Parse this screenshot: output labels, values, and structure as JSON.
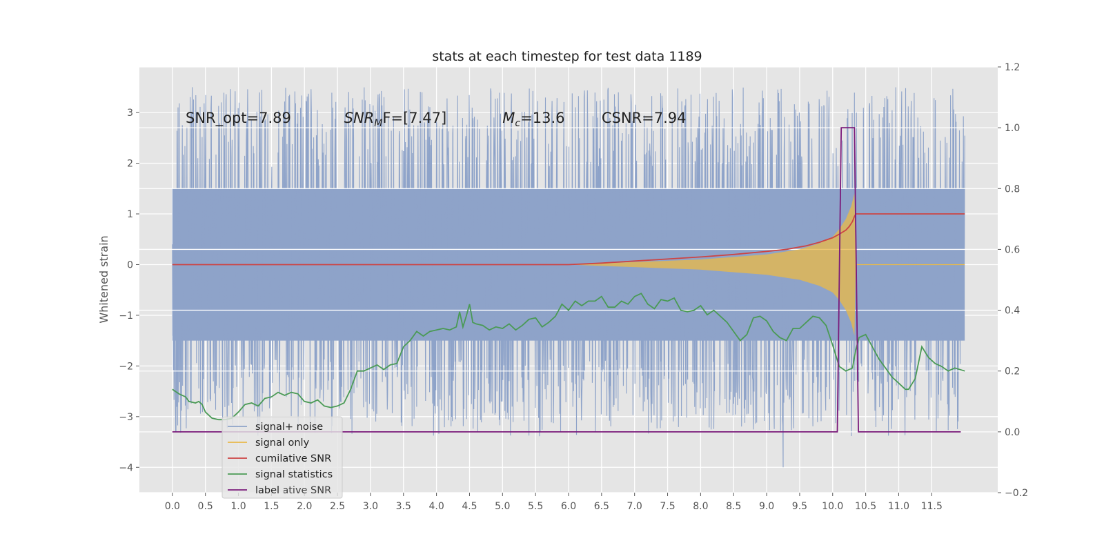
{
  "chart_data": {
    "type": "line",
    "title": "stats at each timestep for test data 1189",
    "ylabel": "Whitened strain",
    "grid": true,
    "legend_placement": "lower-left",
    "xlim": [
      -0.5,
      12.5
    ],
    "ylim": [
      -4.5,
      3.9
    ],
    "ylim_right": [
      -0.2,
      1.2
    ],
    "x_ticks": [
      "0.0",
      "0.5",
      "1.0",
      "1.5",
      "2.0",
      "2.5",
      "3.0",
      "3.5",
      "4.0",
      "4.5",
      "5.0",
      "5.5",
      "6.0",
      "6.5",
      "7.0",
      "7.5",
      "8.0",
      "8.5",
      "9.0",
      "9.5",
      "10.0",
      "10.5",
      "11.0",
      "11.5"
    ],
    "y_ticks": [
      "3",
      "2",
      "1",
      "0",
      "−1",
      "−2",
      "−3",
      "−4"
    ],
    "y_ticks_right": [
      "1.2",
      "1.0",
      "0.8",
      "0.6",
      "0.4",
      "0.2",
      "0.0",
      "−0.2"
    ],
    "annotations": [
      {
        "type": "plain",
        "text": "SNR_opt=7.89",
        "x": 0.2,
        "y": 2.8
      },
      {
        "type": "math",
        "base": "SNR",
        "sub": "M",
        "rest": "F=[7.47]",
        "x": 2.6,
        "y": 2.8
      },
      {
        "type": "math",
        "base": "M",
        "sub": "c",
        "rest": "=13.6",
        "x": 5.0,
        "y": 2.8
      },
      {
        "type": "plain",
        "text": "CSNR=7.94",
        "x": 6.5,
        "y": 2.8
      }
    ],
    "series": [
      {
        "key": "noise",
        "name": "signal+ noise",
        "color": "#8ea3c9",
        "axis": "left",
        "x_range": [
          0,
          12.0
        ],
        "core_band": [
          -1.5,
          1.5
        ],
        "spike_range": [
          -3.4,
          3.5
        ]
      },
      {
        "key": "signal",
        "name": "signal only",
        "color": "#e8b94a",
        "axis": "left",
        "envelope": [
          [
            6.0,
            0.0
          ],
          [
            7.0,
            0.05
          ],
          [
            8.0,
            0.1
          ],
          [
            9.0,
            0.2
          ],
          [
            9.5,
            0.3
          ],
          [
            9.8,
            0.42
          ],
          [
            10.0,
            0.55
          ],
          [
            10.1,
            0.7
          ],
          [
            10.2,
            0.9
          ],
          [
            10.28,
            1.15
          ],
          [
            10.33,
            1.4
          ],
          [
            10.35,
            0.0
          ],
          [
            12.0,
            0.0
          ]
        ]
      },
      {
        "key": "csnr",
        "name": "cumilative SNR",
        "color": "#cc4444",
        "axis": "left",
        "points": [
          [
            0.0,
            0.0
          ],
          [
            6.0,
            0.0
          ],
          [
            6.5,
            0.03
          ],
          [
            7.0,
            0.07
          ],
          [
            7.5,
            0.11
          ],
          [
            8.0,
            0.15
          ],
          [
            8.5,
            0.2
          ],
          [
            9.0,
            0.26
          ],
          [
            9.3,
            0.3
          ],
          [
            9.6,
            0.37
          ],
          [
            9.8,
            0.44
          ],
          [
            10.0,
            0.53
          ],
          [
            10.1,
            0.6
          ],
          [
            10.2,
            0.68
          ],
          [
            10.25,
            0.75
          ],
          [
            10.3,
            0.85
          ],
          [
            10.33,
            0.95
          ],
          [
            10.35,
            1.0
          ],
          [
            12.0,
            1.0
          ]
        ]
      },
      {
        "key": "stat",
        "name": "signal statistics",
        "color": "#4a9a55",
        "axis": "right",
        "points": [
          [
            0.0,
            0.14
          ],
          [
            0.1,
            0.125
          ],
          [
            0.2,
            0.115
          ],
          [
            0.25,
            0.1
          ],
          [
            0.35,
            0.095
          ],
          [
            0.4,
            0.1
          ],
          [
            0.45,
            0.09
          ],
          [
            0.5,
            0.065
          ],
          [
            0.6,
            0.045
          ],
          [
            0.7,
            0.04
          ],
          [
            0.8,
            0.04
          ],
          [
            0.9,
            0.045
          ],
          [
            1.0,
            0.065
          ],
          [
            1.1,
            0.09
          ],
          [
            1.2,
            0.095
          ],
          [
            1.3,
            0.085
          ],
          [
            1.4,
            0.11
          ],
          [
            1.5,
            0.115
          ],
          [
            1.6,
            0.13
          ],
          [
            1.7,
            0.12
          ],
          [
            1.8,
            0.13
          ],
          [
            1.9,
            0.125
          ],
          [
            2.0,
            0.1
          ],
          [
            2.1,
            0.095
          ],
          [
            2.2,
            0.105
          ],
          [
            2.3,
            0.085
          ],
          [
            2.4,
            0.08
          ],
          [
            2.5,
            0.085
          ],
          [
            2.6,
            0.095
          ],
          [
            2.7,
            0.14
          ],
          [
            2.8,
            0.2
          ],
          [
            2.9,
            0.2
          ],
          [
            3.0,
            0.21
          ],
          [
            3.1,
            0.22
          ],
          [
            3.2,
            0.205
          ],
          [
            3.3,
            0.22
          ],
          [
            3.4,
            0.225
          ],
          [
            3.5,
            0.28
          ],
          [
            3.6,
            0.3
          ],
          [
            3.7,
            0.33
          ],
          [
            3.8,
            0.315
          ],
          [
            3.9,
            0.33
          ],
          [
            4.0,
            0.335
          ],
          [
            4.1,
            0.34
          ],
          [
            4.2,
            0.335
          ],
          [
            4.3,
            0.345
          ],
          [
            4.35,
            0.395
          ],
          [
            4.4,
            0.345
          ],
          [
            4.45,
            0.38
          ],
          [
            4.5,
            0.42
          ],
          [
            4.55,
            0.36
          ],
          [
            4.6,
            0.355
          ],
          [
            4.7,
            0.35
          ],
          [
            4.8,
            0.335
          ],
          [
            4.9,
            0.345
          ],
          [
            5.0,
            0.34
          ],
          [
            5.1,
            0.355
          ],
          [
            5.2,
            0.335
          ],
          [
            5.3,
            0.35
          ],
          [
            5.4,
            0.37
          ],
          [
            5.5,
            0.375
          ],
          [
            5.6,
            0.345
          ],
          [
            5.7,
            0.36
          ],
          [
            5.8,
            0.38
          ],
          [
            5.9,
            0.42
          ],
          [
            6.0,
            0.4
          ],
          [
            6.1,
            0.43
          ],
          [
            6.2,
            0.415
          ],
          [
            6.3,
            0.43
          ],
          [
            6.4,
            0.43
          ],
          [
            6.5,
            0.445
          ],
          [
            6.6,
            0.41
          ],
          [
            6.7,
            0.41
          ],
          [
            6.8,
            0.43
          ],
          [
            6.9,
            0.42
          ],
          [
            7.0,
            0.445
          ],
          [
            7.1,
            0.455
          ],
          [
            7.2,
            0.42
          ],
          [
            7.3,
            0.405
          ],
          [
            7.4,
            0.435
          ],
          [
            7.5,
            0.43
          ],
          [
            7.6,
            0.44
          ],
          [
            7.7,
            0.4
          ],
          [
            7.8,
            0.395
          ],
          [
            7.9,
            0.4
          ],
          [
            8.0,
            0.415
          ],
          [
            8.1,
            0.385
          ],
          [
            8.2,
            0.4
          ],
          [
            8.3,
            0.38
          ],
          [
            8.4,
            0.36
          ],
          [
            8.5,
            0.33
          ],
          [
            8.6,
            0.3
          ],
          [
            8.7,
            0.32
          ],
          [
            8.8,
            0.375
          ],
          [
            8.9,
            0.38
          ],
          [
            9.0,
            0.365
          ],
          [
            9.1,
            0.33
          ],
          [
            9.2,
            0.31
          ],
          [
            9.3,
            0.3
          ],
          [
            9.4,
            0.34
          ],
          [
            9.5,
            0.34
          ],
          [
            9.6,
            0.36
          ],
          [
            9.7,
            0.38
          ],
          [
            9.8,
            0.375
          ],
          [
            9.9,
            0.35
          ],
          [
            10.0,
            0.285
          ],
          [
            10.1,
            0.215
          ],
          [
            10.2,
            0.2
          ],
          [
            10.3,
            0.21
          ],
          [
            10.35,
            0.27
          ],
          [
            10.4,
            0.31
          ],
          [
            10.5,
            0.32
          ],
          [
            10.6,
            0.28
          ],
          [
            10.7,
            0.24
          ],
          [
            10.8,
            0.21
          ],
          [
            10.9,
            0.18
          ],
          [
            11.0,
            0.16
          ],
          [
            11.1,
            0.14
          ],
          [
            11.15,
            0.14
          ],
          [
            11.25,
            0.175
          ],
          [
            11.35,
            0.28
          ],
          [
            11.45,
            0.245
          ],
          [
            11.55,
            0.225
          ],
          [
            11.65,
            0.215
          ],
          [
            11.75,
            0.2
          ],
          [
            11.85,
            0.21
          ],
          [
            12.0,
            0.2
          ]
        ]
      },
      {
        "key": "label",
        "name": "label",
        "color": "#7a1a7a",
        "axis": "right",
        "points": [
          [
            0.0,
            0.0
          ],
          [
            10.07,
            0.0
          ],
          [
            10.13,
            1.0
          ],
          [
            10.33,
            1.0
          ],
          [
            10.39,
            0.0
          ],
          [
            11.94,
            0.0
          ]
        ]
      }
    ],
    "ghost_legend_text": "cumilative SNR"
  }
}
